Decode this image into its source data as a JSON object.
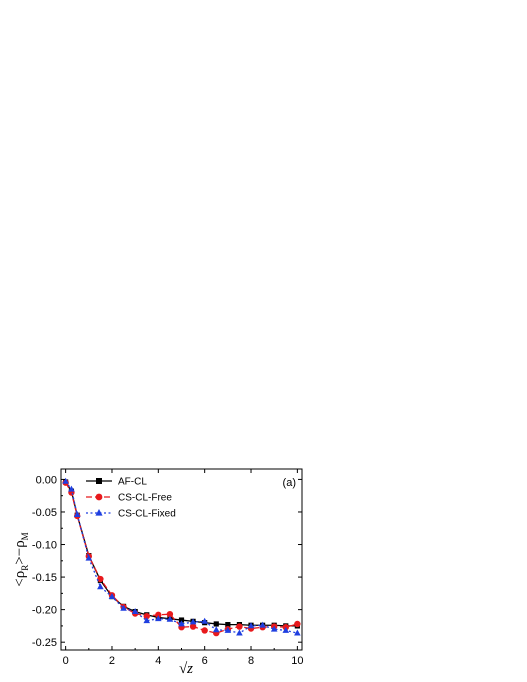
{
  "chart_data": {
    "type": "line",
    "panel_label": "(a)",
    "xlabel": "√z",
    "ylabel_parts": [
      "<ρ",
      "R",
      ">−ρ",
      "M"
    ],
    "xlim": [
      -0.2,
      10.2
    ],
    "ylim": [
      -0.262,
      0.016
    ],
    "x_ticks": [
      0,
      2,
      4,
      6,
      8,
      10
    ],
    "x_tick_labels": [
      "0",
      "2",
      "4",
      "6",
      "8",
      "10"
    ],
    "y_ticks": [
      0.0,
      -0.05,
      -0.1,
      -0.15,
      -0.2,
      -0.25
    ],
    "y_tick_labels": [
      "0.00",
      "-0.05",
      "-0.10",
      "-0.15",
      "-0.20",
      "-0.25"
    ],
    "grid": false,
    "legend_position": "top-left",
    "series": [
      {
        "name": "AF-CL",
        "color": "#000000",
        "marker": "square",
        "line": "solid",
        "x": [
          0,
          0.25,
          0.5,
          1,
          1.5,
          2,
          2.5,
          3,
          3.5,
          4,
          4.5,
          5,
          5.5,
          6,
          6.5,
          7,
          7.5,
          8,
          8.5,
          9,
          9.5,
          10
        ],
        "y": [
          -0.004,
          -0.018,
          -0.055,
          -0.117,
          -0.155,
          -0.18,
          -0.195,
          -0.203,
          -0.208,
          -0.212,
          -0.214,
          -0.216,
          -0.218,
          -0.22,
          -0.222,
          -0.223,
          -0.223,
          -0.224,
          -0.224,
          -0.224,
          -0.225,
          -0.225
        ]
      },
      {
        "name": "CS-CL-Free",
        "color": "#e8191c",
        "marker": "circle",
        "line": "dashed",
        "x": [
          0,
          0.25,
          0.5,
          1,
          1.5,
          2,
          2.5,
          3,
          3.5,
          4,
          4.5,
          5,
          5.5,
          6,
          6.5,
          7,
          7.5,
          8,
          8.5,
          9,
          9.5,
          10
        ],
        "y": [
          -0.005,
          -0.02,
          -0.056,
          -0.118,
          -0.153,
          -0.178,
          -0.196,
          -0.206,
          -0.21,
          -0.208,
          -0.207,
          -0.227,
          -0.226,
          -0.232,
          -0.236,
          -0.23,
          -0.226,
          -0.229,
          -0.227,
          -0.226,
          -0.227,
          -0.222
        ]
      },
      {
        "name": "CS-CL-Fixed",
        "color": "#1f3fe0",
        "marker": "triangle",
        "line": "dotted",
        "x": [
          0,
          0.25,
          0.5,
          1,
          1.5,
          2,
          2.5,
          3,
          3.5,
          4,
          4.5,
          5,
          5.5,
          6,
          6.5,
          7,
          7.5,
          8,
          8.5,
          9,
          9.5,
          10
        ],
        "y": [
          -0.003,
          -0.015,
          -0.054,
          -0.121,
          -0.165,
          -0.18,
          -0.198,
          -0.203,
          -0.217,
          -0.214,
          -0.215,
          -0.222,
          -0.219,
          -0.218,
          -0.231,
          -0.232,
          -0.236,
          -0.225,
          -0.224,
          -0.23,
          -0.232,
          -0.236
        ]
      }
    ]
  }
}
